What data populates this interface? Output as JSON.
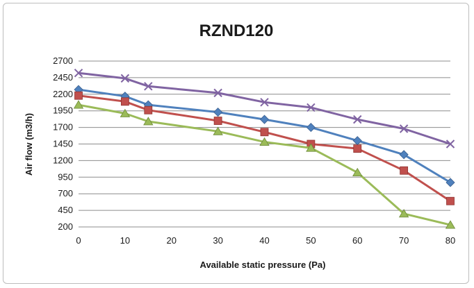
{
  "chart_data": {
    "type": "line",
    "title": "RZND120",
    "xlabel": "Available static pressure (Pa)",
    "ylabel": "Air flow (m3/h)",
    "x": [
      0,
      10,
      15,
      30,
      40,
      50,
      60,
      70,
      80
    ],
    "x_ticks": [
      "0",
      "10",
      "20",
      "30",
      "40",
      "50",
      "60",
      "70",
      "80"
    ],
    "y_ticks": [
      "200",
      "450",
      "700",
      "950",
      "1200",
      "1450",
      "1700",
      "1950",
      "2200",
      "2450",
      "2700"
    ],
    "ylim": [
      200,
      2700
    ],
    "grid": "horizontal",
    "legend": "none",
    "series": [
      {
        "color": "#4f81bd",
        "marker": "diamond",
        "values": [
          2270,
          2170,
          2040,
          1930,
          1820,
          1700,
          1500,
          1290,
          870
        ]
      },
      {
        "color": "#c0504d",
        "marker": "square",
        "values": [
          2180,
          2090,
          1960,
          1800,
          1630,
          1450,
          1380,
          1050,
          590
        ]
      },
      {
        "color": "#9bbb59",
        "marker": "triangle",
        "values": [
          2040,
          1910,
          1790,
          1640,
          1480,
          1390,
          1020,
          400,
          230
        ]
      },
      {
        "color": "#8064a2",
        "marker": "x",
        "values": [
          2520,
          2440,
          2320,
          2220,
          2080,
          2000,
          1820,
          1680,
          1450
        ]
      }
    ]
  }
}
